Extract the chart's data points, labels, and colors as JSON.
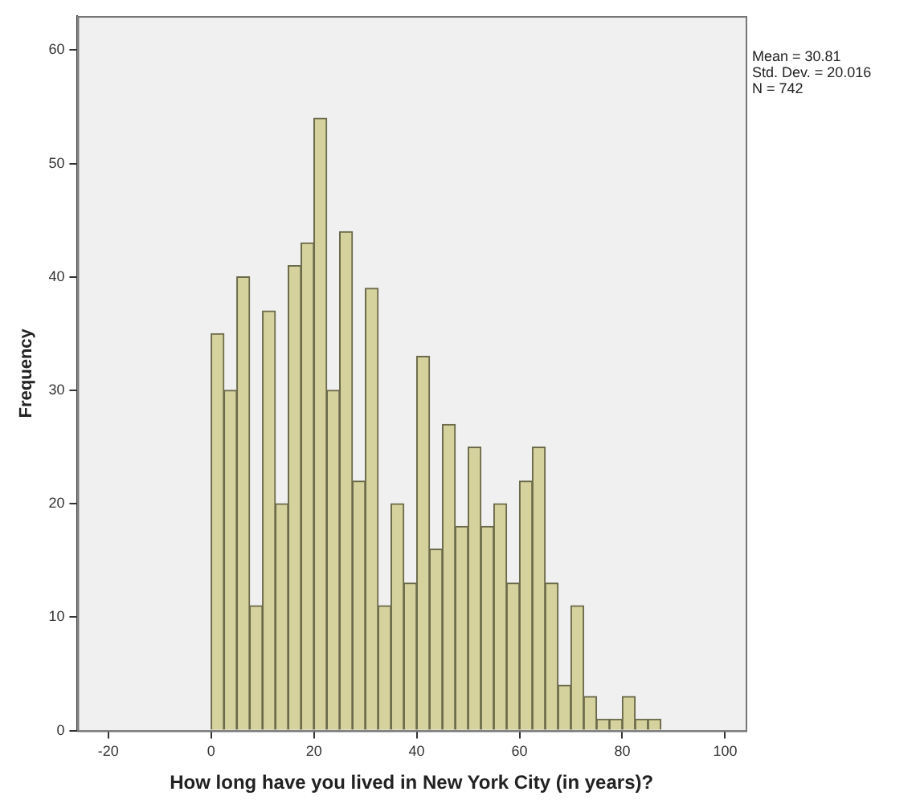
{
  "chart_data": {
    "type": "histogram",
    "xlabel": "How long have you lived in New York City (in years)?",
    "ylabel": "Frequency",
    "bins": [
      0,
      2.5,
      5,
      7.5,
      10,
      12.5,
      15,
      17.5,
      20,
      22.5,
      25,
      27.5,
      30,
      32.5,
      35,
      37.5,
      40,
      42.5,
      45,
      47.5,
      50,
      52.5,
      55,
      57.5,
      60,
      62.5,
      65,
      67.5,
      70,
      72.5,
      75,
      77.5,
      80,
      82.5,
      85,
      87.5
    ],
    "values": [
      35,
      30,
      40,
      11,
      37,
      20,
      41,
      43,
      54,
      30,
      44,
      22,
      39,
      11,
      20,
      13,
      33,
      16,
      27,
      18,
      25,
      18,
      20,
      13,
      22,
      25,
      13,
      4,
      11,
      3,
      1,
      1,
      3,
      1,
      1
    ],
    "color": "#d6d29e",
    "xlim": [
      -26,
      104
    ],
    "xticks": [
      -20,
      0,
      20,
      40,
      60,
      80,
      100
    ],
    "ylim": [
      0,
      63
    ],
    "yticks": [
      0,
      10,
      20,
      30,
      40,
      50,
      60
    ],
    "legend": false,
    "annotations": [
      "Mean = 30.81",
      "Std. Dev. = 20.016",
      "N = 742"
    ]
  }
}
